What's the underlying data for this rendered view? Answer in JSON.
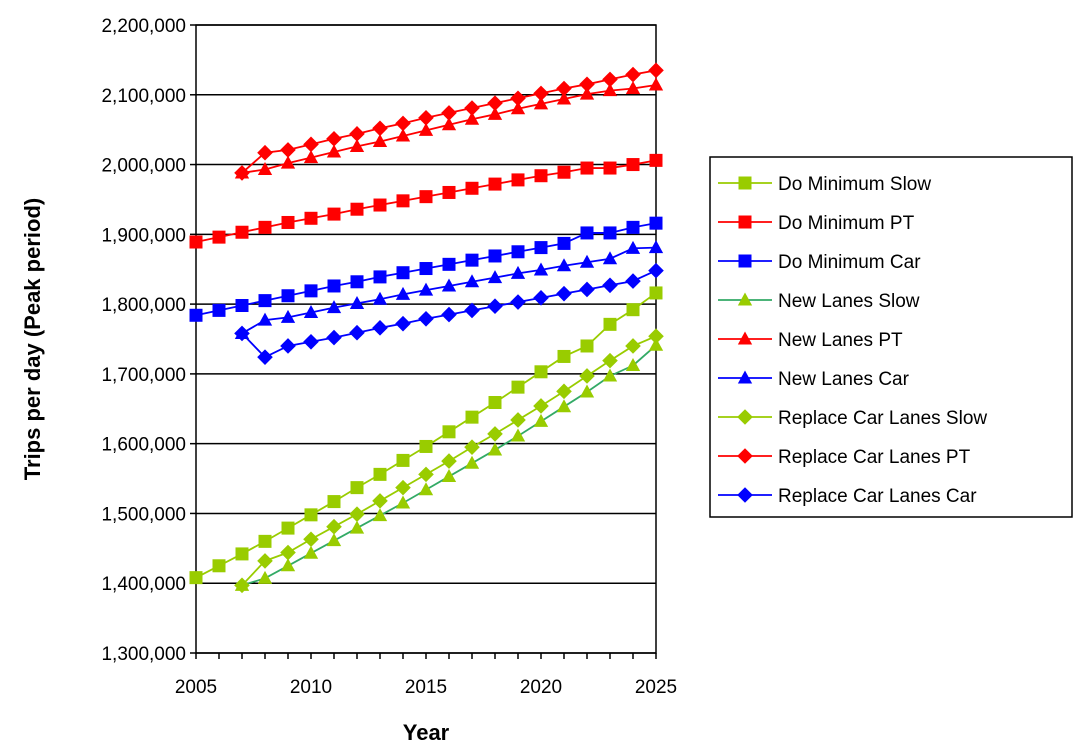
{
  "chart_data": {
    "type": "line",
    "xlabel": "Year",
    "ylabel": "Trips per day (Peak period)",
    "xlim": [
      2005,
      2025
    ],
    "ylim": [
      1300000,
      2200000
    ],
    "x_ticks": [
      2005,
      2010,
      2015,
      2020,
      2025
    ],
    "y_ticks": [
      1300000,
      1400000,
      1500000,
      1600000,
      1700000,
      1800000,
      1900000,
      2000000,
      2100000,
      2200000
    ],
    "y_tick_labels": [
      "1,300,000",
      "1,400,000",
      "1,500,000",
      "1,600,000",
      "1,700,000",
      "1,800,000",
      "1,900,000",
      "2,000,000",
      "2,100,000",
      "2,200,000"
    ],
    "x_tick_labels": [
      "2005",
      "2010",
      "2015",
      "2020",
      "2025"
    ],
    "grid": "horizontal",
    "legend_position": "right",
    "x": [
      2005,
      2006,
      2007,
      2008,
      2009,
      2010,
      2011,
      2012,
      2013,
      2014,
      2015,
      2016,
      2017,
      2018,
      2019,
      2020,
      2021,
      2022,
      2023,
      2024,
      2025
    ],
    "series": [
      {
        "name": "Do Minimum Slow",
        "color": "#99cc00",
        "marker": "square",
        "values": [
          1408000,
          1425000,
          1442000,
          1460000,
          1479000,
          1498000,
          1517000,
          1537000,
          1556000,
          1576000,
          1596000,
          1617000,
          1638000,
          1659000,
          1681000,
          1703000,
          1725000,
          1740000,
          1771000,
          1792000,
          1816000
        ]
      },
      {
        "name": "Do Minimum PT",
        "color": "#ff0000",
        "marker": "square",
        "values": [
          1889000,
          1896000,
          1903000,
          1910000,
          1917000,
          1923000,
          1929000,
          1936000,
          1942000,
          1948000,
          1954000,
          1960000,
          1966000,
          1972000,
          1978000,
          1984000,
          1989000,
          1995000,
          1995000,
          2000000,
          2006000
        ]
      },
      {
        "name": "Do Minimum Car",
        "color": "#0000ff",
        "marker": "square",
        "values": [
          1784000,
          1791000,
          1798000,
          1805000,
          1812000,
          1819000,
          1826000,
          1832000,
          1839000,
          1845000,
          1851000,
          1857000,
          1863000,
          1869000,
          1875000,
          1881000,
          1887000,
          1902000,
          1902000,
          1910000,
          1916000
        ]
      },
      {
        "name": "New Lanes Slow",
        "color": "#33aa66",
        "marker": "triangle",
        "fill": "#99cc00",
        "values": [
          null,
          null,
          1397000,
          1407000,
          1425000,
          1443000,
          1461000,
          1479000,
          1497000,
          1515000,
          1534000,
          1553000,
          1572000,
          1591000,
          1611000,
          1632000,
          1653000,
          1674000,
          1697000,
          1712000,
          1741000
        ]
      },
      {
        "name": "New Lanes PT",
        "color": "#ff0000",
        "marker": "triangle",
        "values": [
          null,
          null,
          1988000,
          1993000,
          2002000,
          2010000,
          2018000,
          2026000,
          2033000,
          2041000,
          2049000,
          2057000,
          2065000,
          2072000,
          2080000,
          2087000,
          2094000,
          2101000,
          2106000,
          2109000,
          2114000
        ]
      },
      {
        "name": "New Lanes Car",
        "color": "#0000ff",
        "marker": "triangle",
        "values": [
          null,
          null,
          1758000,
          1777000,
          1781000,
          1788000,
          1795000,
          1801000,
          1807000,
          1814000,
          1820000,
          1826000,
          1832000,
          1838000,
          1844000,
          1849000,
          1855000,
          1860000,
          1865000,
          1880000,
          1881000
        ]
      },
      {
        "name": "Replace Car Lanes Slow",
        "color": "#99cc00",
        "marker": "diamond",
        "values": [
          null,
          null,
          1397000,
          1432000,
          1444000,
          1463000,
          1481000,
          1499000,
          1518000,
          1537000,
          1556000,
          1575000,
          1595000,
          1614000,
          1634000,
          1654000,
          1675000,
          1697000,
          1719000,
          1740000,
          1754000
        ]
      },
      {
        "name": "Replace Car Lanes PT",
        "color": "#ff0000",
        "marker": "diamond",
        "values": [
          null,
          null,
          1988000,
          2017000,
          2021000,
          2029000,
          2037000,
          2044000,
          2052000,
          2059000,
          2067000,
          2074000,
          2081000,
          2088000,
          2095000,
          2102000,
          2109000,
          2115000,
          2122000,
          2129000,
          2135000
        ]
      },
      {
        "name": "Replace Car Lanes Car",
        "color": "#0000ff",
        "marker": "diamond",
        "values": [
          null,
          null,
          1758000,
          1724000,
          1740000,
          1746000,
          1752000,
          1759000,
          1766000,
          1772000,
          1779000,
          1785000,
          1791000,
          1797000,
          1803000,
          1809000,
          1815000,
          1821000,
          1827000,
          1833000,
          1848000
        ]
      }
    ]
  }
}
